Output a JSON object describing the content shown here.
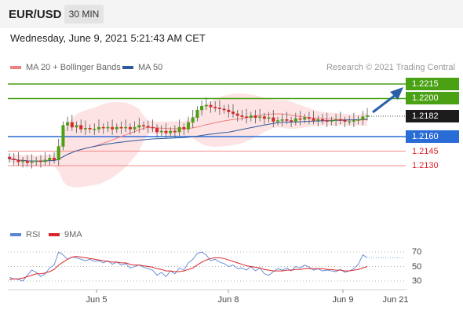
{
  "header": {
    "symbol": "EUR/USD",
    "timeframe": "30 MIN"
  },
  "datetime": "Wednesday, June 9, 2021 5:21:43 AM CET",
  "legend": {
    "ma20_label": "MA 20 + Bollinger Bands",
    "ma50_label": "MA 50",
    "ma20_color": "#f08080",
    "ma50_color": "#2d5a9e",
    "credit": "Research © 2021 Trading Central"
  },
  "colors": {
    "up_candle": "#4aa113",
    "down_candle": "#d9262b",
    "support_line": "#2a6cd6",
    "resistance_line": "#4aa113",
    "minor_support": "#f28a8a",
    "bollinger_fill": "#fde0e0",
    "arrow": "#2a5fa8"
  },
  "levels": {
    "resistance_2": "1.2215",
    "resistance_1": "1.2200",
    "last_price": "1.2182",
    "pivot": "1.2160",
    "support_1": "1.2145",
    "support_2": "1.2130"
  },
  "rsi_panel": {
    "rsi_label": "RSI",
    "ma9_label": "9MA",
    "rsi_color": "#5b86d6",
    "ma9_color": "#d9262b",
    "ticks": [
      "70",
      "50",
      "30"
    ]
  },
  "x_axis": {
    "ticks": [
      "Jun 5",
      "Jun 8",
      "Jun 9",
      "Jun 21"
    ]
  },
  "chart_data": {
    "type": "line",
    "price_ylim": [
      1.212,
      1.2222
    ],
    "series": [
      {
        "name": "MA 20 + Bollinger Bands",
        "values": []
      },
      {
        "name": "MA 50",
        "values": []
      }
    ],
    "closes": [
      1.2137,
      1.2136,
      1.2134,
      1.2135,
      1.2133,
      1.2134,
      1.2135,
      1.2134,
      1.2136,
      1.2138,
      1.2136,
      1.215,
      1.2172,
      1.2175,
      1.217,
      1.2172,
      1.2168,
      1.2169,
      1.2168,
      1.2168,
      1.217,
      1.2169,
      1.217,
      1.2168,
      1.217,
      1.2169,
      1.217,
      1.2168,
      1.217,
      1.2172,
      1.2171,
      1.217,
      1.2169,
      1.2165,
      1.2166,
      1.2164,
      1.2166,
      1.2165,
      1.217,
      1.2168,
      1.2175,
      1.218,
      1.2188,
      1.2192,
      1.2193,
      1.2191,
      1.219,
      1.2189,
      1.2188,
      1.2186,
      1.2184,
      1.2182,
      1.2181,
      1.218,
      1.2182,
      1.218,
      1.2181,
      1.2179,
      1.218,
      1.2176,
      1.2177,
      1.2178,
      1.2177,
      1.2176,
      1.2179,
      1.2178,
      1.218,
      1.2179,
      1.2177,
      1.2178,
      1.2177,
      1.2176,
      1.2177,
      1.2178,
      1.2177,
      1.2176,
      1.2176,
      1.2177,
      1.2178,
      1.2181,
      1.2182
    ],
    "rsi_ylim": [
      20,
      80
    ],
    "rsi_values": [
      35,
      33,
      32,
      30,
      38,
      45,
      42,
      36,
      40,
      48,
      52,
      70,
      66,
      60,
      63,
      62,
      60,
      58,
      60,
      57,
      58,
      55,
      58,
      53,
      56,
      52,
      54,
      48,
      50,
      52,
      49,
      47,
      45,
      38,
      42,
      36,
      44,
      40,
      48,
      45,
      55,
      60,
      68,
      70,
      66,
      58,
      60,
      56,
      54,
      50,
      52,
      47,
      48,
      45,
      50,
      44,
      48,
      40,
      38,
      43,
      47,
      45,
      48,
      44,
      50,
      48,
      52,
      49,
      45,
      47,
      44,
      45,
      44,
      43,
      46,
      42,
      44,
      47,
      53,
      66,
      62
    ],
    "rsi_ma9": [
      32,
      33,
      33,
      34,
      36,
      38,
      40,
      40,
      41,
      43,
      46,
      52,
      56,
      60,
      63,
      64,
      63,
      62,
      61,
      60,
      59,
      58,
      57,
      56,
      56,
      55,
      55,
      53,
      52,
      52,
      51,
      50,
      49,
      47,
      46,
      44,
      44,
      43,
      43,
      44,
      46,
      48,
      52,
      56,
      59,
      61,
      62,
      62,
      61,
      59,
      57,
      55,
      53,
      51,
      50,
      49,
      48,
      46,
      45,
      44,
      44,
      44,
      45,
      45,
      46,
      46,
      47,
      47,
      47,
      47,
      47,
      46,
      46,
      45,
      45,
      44,
      44,
      45,
      46,
      48,
      50
    ],
    "rsi_ticks": [
      70,
      50,
      30
    ]
  }
}
